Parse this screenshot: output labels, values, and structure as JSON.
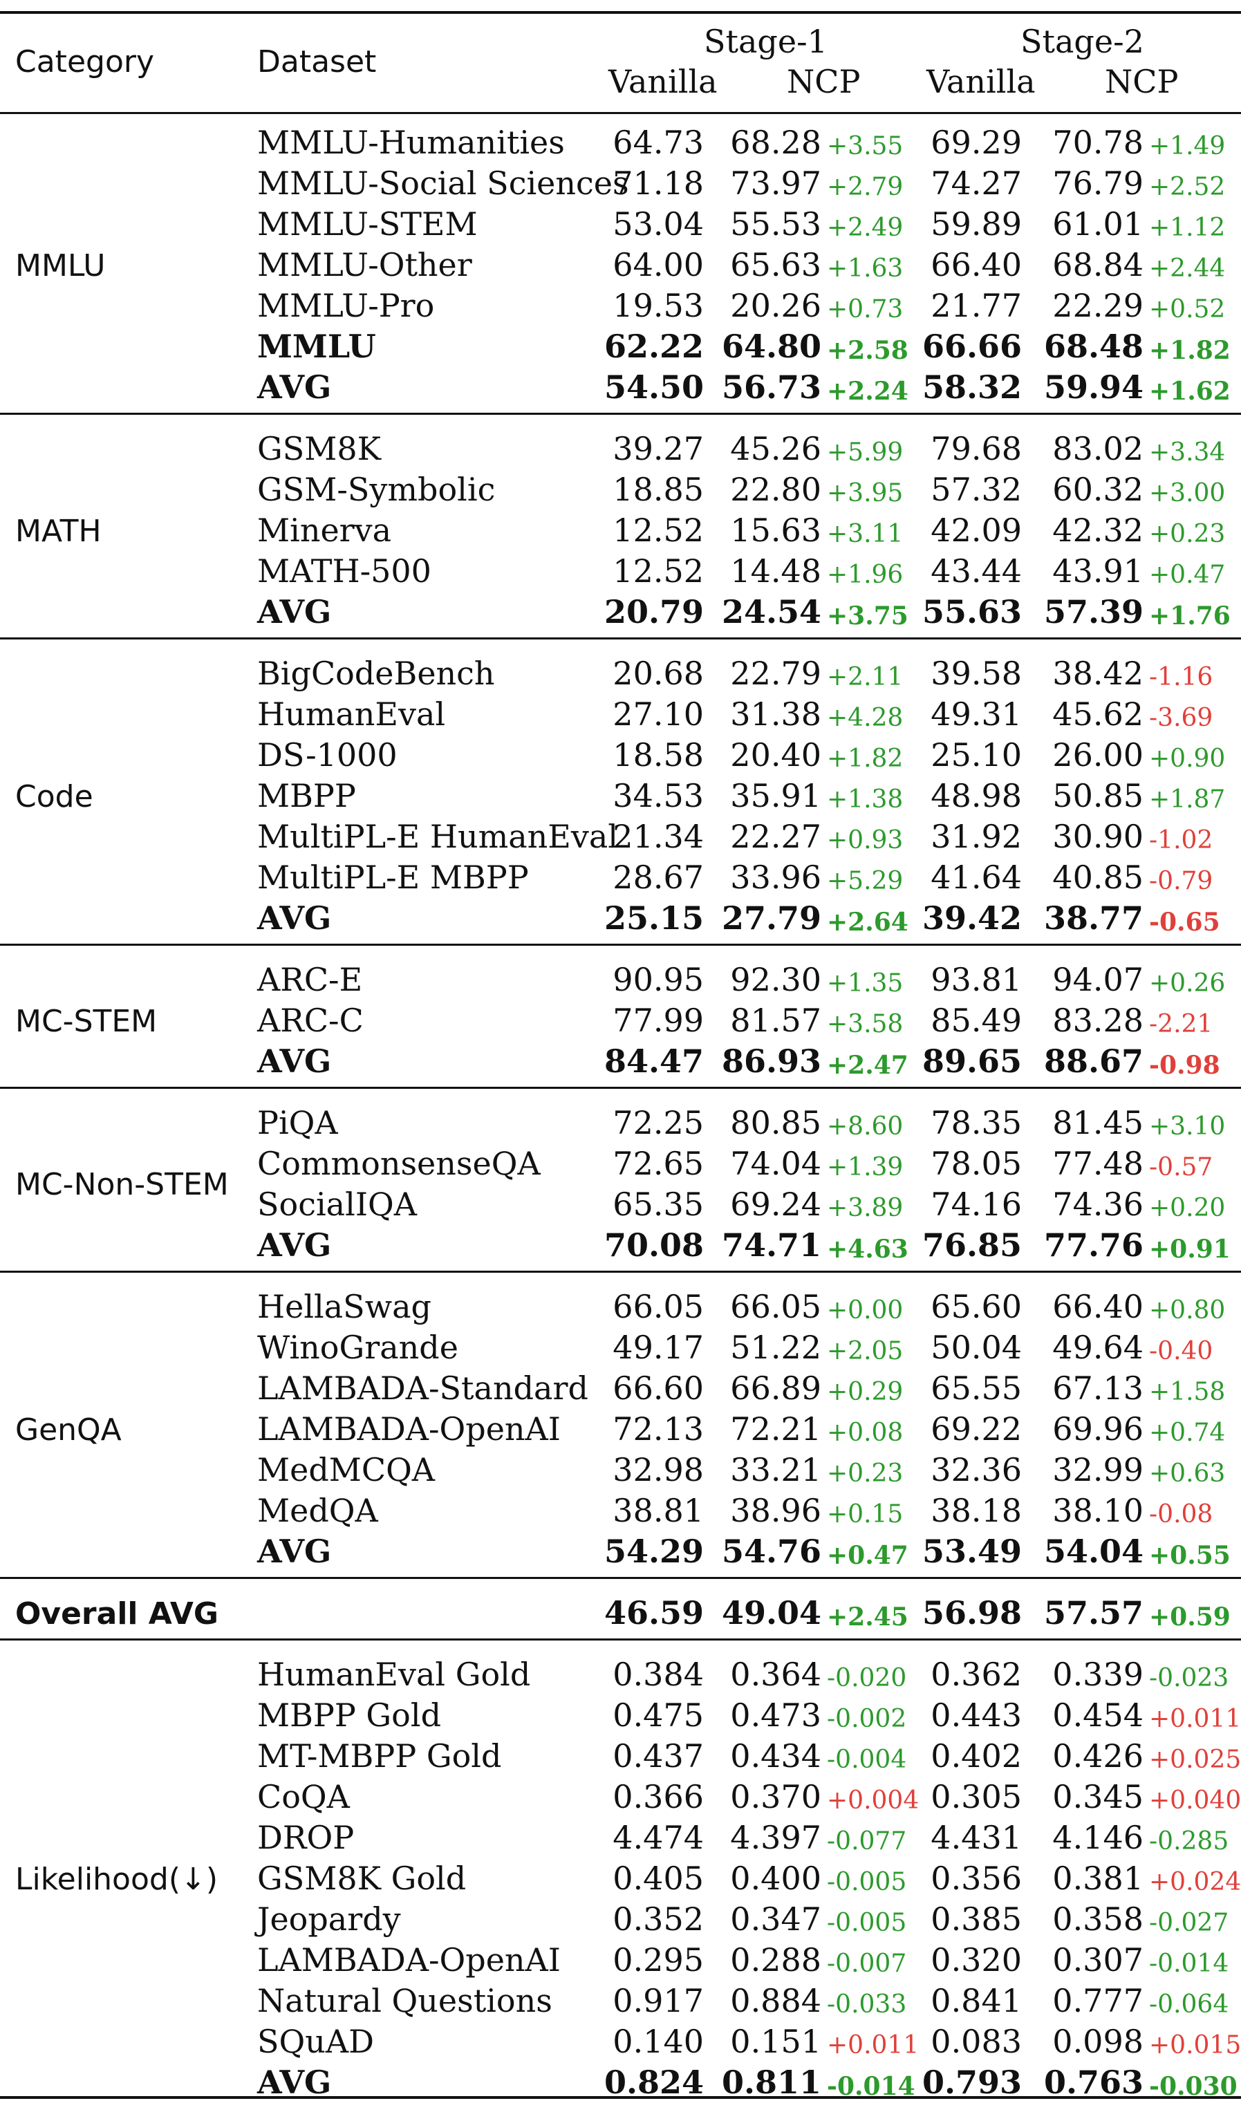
{
  "header": {
    "category": "Category",
    "dataset": "Dataset",
    "stage1": "Stage-1",
    "stage2": "Stage-2",
    "vanilla": "Vanilla",
    "ncp": "NCP"
  },
  "groups": [
    {
      "category": "MMLU",
      "rows": [
        {
          "dataset": "MMLU-Humanities",
          "s1_vanilla": "64.73",
          "s1_ncp": "68.28",
          "s1_delta": "+3.55",
          "s2_vanilla": "69.29",
          "s2_ncp": "70.78",
          "s2_delta": "+1.49"
        },
        {
          "dataset": "MMLU-Social Sciences",
          "s1_vanilla": "71.18",
          "s1_ncp": "73.97",
          "s1_delta": "+2.79",
          "s2_vanilla": "74.27",
          "s2_ncp": "76.79",
          "s2_delta": "+2.52"
        },
        {
          "dataset": "MMLU-STEM",
          "s1_vanilla": "53.04",
          "s1_ncp": "55.53",
          "s1_delta": "+2.49",
          "s2_vanilla": "59.89",
          "s2_ncp": "61.01",
          "s2_delta": "+1.12"
        },
        {
          "dataset": "MMLU-Other",
          "s1_vanilla": "64.00",
          "s1_ncp": "65.63",
          "s1_delta": "+1.63",
          "s2_vanilla": "66.40",
          "s2_ncp": "68.84",
          "s2_delta": "+2.44"
        },
        {
          "dataset": "MMLU-Pro",
          "s1_vanilla": "19.53",
          "s1_ncp": "20.26",
          "s1_delta": "+0.73",
          "s2_vanilla": "21.77",
          "s2_ncp": "22.29",
          "s2_delta": "+0.52"
        },
        {
          "dataset": "MMLU",
          "s1_vanilla": "62.22",
          "s1_ncp": "64.80",
          "s1_delta": "+2.58",
          "s2_vanilla": "66.66",
          "s2_ncp": "68.48",
          "s2_delta": "+1.82",
          "bold": true
        },
        {
          "dataset": "AVG",
          "s1_vanilla": "54.50",
          "s1_ncp": "56.73",
          "s1_delta": "+2.24",
          "s2_vanilla": "58.32",
          "s2_ncp": "59.94",
          "s2_delta": "+1.62",
          "bold": true
        }
      ]
    },
    {
      "category": "MATH",
      "rows": [
        {
          "dataset": "GSM8K",
          "s1_vanilla": "39.27",
          "s1_ncp": "45.26",
          "s1_delta": "+5.99",
          "s2_vanilla": "79.68",
          "s2_ncp": "83.02",
          "s2_delta": "+3.34"
        },
        {
          "dataset": "GSM-Symbolic",
          "s1_vanilla": "18.85",
          "s1_ncp": "22.80",
          "s1_delta": "+3.95",
          "s2_vanilla": "57.32",
          "s2_ncp": "60.32",
          "s2_delta": "+3.00"
        },
        {
          "dataset": "Minerva",
          "s1_vanilla": "12.52",
          "s1_ncp": "15.63",
          "s1_delta": "+3.11",
          "s2_vanilla": "42.09",
          "s2_ncp": "42.32",
          "s2_delta": "+0.23"
        },
        {
          "dataset": "MATH-500",
          "s1_vanilla": "12.52",
          "s1_ncp": "14.48",
          "s1_delta": "+1.96",
          "s2_vanilla": "43.44",
          "s2_ncp": "43.91",
          "s2_delta": "+0.47"
        },
        {
          "dataset": "AVG",
          "s1_vanilla": "20.79",
          "s1_ncp": "24.54",
          "s1_delta": "+3.75",
          "s2_vanilla": "55.63",
          "s2_ncp": "57.39",
          "s2_delta": "+1.76",
          "bold": true
        }
      ]
    },
    {
      "category": "Code",
      "rows": [
        {
          "dataset": "BigCodeBench",
          "s1_vanilla": "20.68",
          "s1_ncp": "22.79",
          "s1_delta": "+2.11",
          "s2_vanilla": "39.58",
          "s2_ncp": "38.42",
          "s2_delta": "-1.16"
        },
        {
          "dataset": "HumanEval",
          "s1_vanilla": "27.10",
          "s1_ncp": "31.38",
          "s1_delta": "+4.28",
          "s2_vanilla": "49.31",
          "s2_ncp": "45.62",
          "s2_delta": "-3.69"
        },
        {
          "dataset": "DS-1000",
          "s1_vanilla": "18.58",
          "s1_ncp": "20.40",
          "s1_delta": "+1.82",
          "s2_vanilla": "25.10",
          "s2_ncp": "26.00",
          "s2_delta": "+0.90"
        },
        {
          "dataset": "MBPP",
          "s1_vanilla": "34.53",
          "s1_ncp": "35.91",
          "s1_delta": "+1.38",
          "s2_vanilla": "48.98",
          "s2_ncp": "50.85",
          "s2_delta": "+1.87"
        },
        {
          "dataset": "MultiPL-E HumanEval",
          "s1_vanilla": "21.34",
          "s1_ncp": "22.27",
          "s1_delta": "+0.93",
          "s2_vanilla": "31.92",
          "s2_ncp": "30.90",
          "s2_delta": "-1.02"
        },
        {
          "dataset": "MultiPL-E MBPP",
          "s1_vanilla": "28.67",
          "s1_ncp": "33.96",
          "s1_delta": "+5.29",
          "s2_vanilla": "41.64",
          "s2_ncp": "40.85",
          "s2_delta": "-0.79"
        },
        {
          "dataset": "AVG",
          "s1_vanilla": "25.15",
          "s1_ncp": "27.79",
          "s1_delta": "+2.64",
          "s2_vanilla": "39.42",
          "s2_ncp": "38.77",
          "s2_delta": "-0.65",
          "bold": true
        }
      ]
    },
    {
      "category": "MC-STEM",
      "rows": [
        {
          "dataset": "ARC-E",
          "s1_vanilla": "90.95",
          "s1_ncp": "92.30",
          "s1_delta": "+1.35",
          "s2_vanilla": "93.81",
          "s2_ncp": "94.07",
          "s2_delta": "+0.26"
        },
        {
          "dataset": "ARC-C",
          "s1_vanilla": "77.99",
          "s1_ncp": "81.57",
          "s1_delta": "+3.58",
          "s2_vanilla": "85.49",
          "s2_ncp": "83.28",
          "s2_delta": "-2.21"
        },
        {
          "dataset": "AVG",
          "s1_vanilla": "84.47",
          "s1_ncp": "86.93",
          "s1_delta": "+2.47",
          "s2_vanilla": "89.65",
          "s2_ncp": "88.67",
          "s2_delta": "-0.98",
          "bold": true
        }
      ]
    },
    {
      "category": "MC-Non-STEM",
      "rows": [
        {
          "dataset": "PiQA",
          "s1_vanilla": "72.25",
          "s1_ncp": "80.85",
          "s1_delta": "+8.60",
          "s2_vanilla": "78.35",
          "s2_ncp": "81.45",
          "s2_delta": "+3.10"
        },
        {
          "dataset": "CommonsenseQA",
          "s1_vanilla": "72.65",
          "s1_ncp": "74.04",
          "s1_delta": "+1.39",
          "s2_vanilla": "78.05",
          "s2_ncp": "77.48",
          "s2_delta": "-0.57"
        },
        {
          "dataset": "SocialIQA",
          "s1_vanilla": "65.35",
          "s1_ncp": "69.24",
          "s1_delta": "+3.89",
          "s2_vanilla": "74.16",
          "s2_ncp": "74.36",
          "s2_delta": "+0.20"
        },
        {
          "dataset": "AVG",
          "s1_vanilla": "70.08",
          "s1_ncp": "74.71",
          "s1_delta": "+4.63",
          "s2_vanilla": "76.85",
          "s2_ncp": "77.76",
          "s2_delta": "+0.91",
          "bold": true
        }
      ]
    },
    {
      "category": "GenQA",
      "rows": [
        {
          "dataset": "HellaSwag",
          "s1_vanilla": "66.05",
          "s1_ncp": "66.05",
          "s1_delta": "+0.00",
          "s2_vanilla": "65.60",
          "s2_ncp": "66.40",
          "s2_delta": "+0.80"
        },
        {
          "dataset": "WinoGrande",
          "s1_vanilla": "49.17",
          "s1_ncp": "51.22",
          "s1_delta": "+2.05",
          "s2_vanilla": "50.04",
          "s2_ncp": "49.64",
          "s2_delta": "-0.40"
        },
        {
          "dataset": "LAMBADA-Standard",
          "s1_vanilla": "66.60",
          "s1_ncp": "66.89",
          "s1_delta": "+0.29",
          "s2_vanilla": "65.55",
          "s2_ncp": "67.13",
          "s2_delta": "+1.58"
        },
        {
          "dataset": "LAMBADA-OpenAI",
          "s1_vanilla": "72.13",
          "s1_ncp": "72.21",
          "s1_delta": "+0.08",
          "s2_vanilla": "69.22",
          "s2_ncp": "69.96",
          "s2_delta": "+0.74"
        },
        {
          "dataset": "MedMCQA",
          "s1_vanilla": "32.98",
          "s1_ncp": "33.21",
          "s1_delta": "+0.23",
          "s2_vanilla": "32.36",
          "s2_ncp": "32.99",
          "s2_delta": "+0.63"
        },
        {
          "dataset": "MedQA",
          "s1_vanilla": "38.81",
          "s1_ncp": "38.96",
          "s1_delta": "+0.15",
          "s2_vanilla": "38.18",
          "s2_ncp": "38.10",
          "s2_delta": "-0.08"
        },
        {
          "dataset": "AVG",
          "s1_vanilla": "54.29",
          "s1_ncp": "54.76",
          "s1_delta": "+0.47",
          "s2_vanilla": "53.49",
          "s2_ncp": "54.04",
          "s2_delta": "+0.55",
          "bold": true
        }
      ]
    },
    {
      "category": "Overall AVG",
      "category_bold": true,
      "rows": [
        {
          "dataset": "",
          "s1_vanilla": "46.59",
          "s1_ncp": "49.04",
          "s1_delta": "+2.45",
          "s2_vanilla": "56.98",
          "s2_ncp": "57.57",
          "s2_delta": "+0.59",
          "bold": true
        }
      ]
    },
    {
      "category": "Likelihood(↓)",
      "inverted": true,
      "rows": [
        {
          "dataset": "HumanEval Gold",
          "s1_vanilla": "0.384",
          "s1_ncp": "0.364",
          "s1_delta": "-0.020",
          "s2_vanilla": "0.362",
          "s2_ncp": "0.339",
          "s2_delta": "-0.023"
        },
        {
          "dataset": "MBPP Gold",
          "s1_vanilla": "0.475",
          "s1_ncp": "0.473",
          "s1_delta": "-0.002",
          "s2_vanilla": "0.443",
          "s2_ncp": "0.454",
          "s2_delta": "+0.011"
        },
        {
          "dataset": "MT-MBPP Gold",
          "s1_vanilla": "0.437",
          "s1_ncp": "0.434",
          "s1_delta": "-0.004",
          "s2_vanilla": "0.402",
          "s2_ncp": "0.426",
          "s2_delta": "+0.025"
        },
        {
          "dataset": "CoQA",
          "s1_vanilla": "0.366",
          "s1_ncp": "0.370",
          "s1_delta": "+0.004",
          "s2_vanilla": "0.305",
          "s2_ncp": "0.345",
          "s2_delta": "+0.040"
        },
        {
          "dataset": "DROP",
          "s1_vanilla": "4.474",
          "s1_ncp": "4.397",
          "s1_delta": "-0.077",
          "s2_vanilla": "4.431",
          "s2_ncp": "4.146",
          "s2_delta": "-0.285"
        },
        {
          "dataset": "GSM8K Gold",
          "s1_vanilla": "0.405",
          "s1_ncp": "0.400",
          "s1_delta": "-0.005",
          "s2_vanilla": "0.356",
          "s2_ncp": "0.381",
          "s2_delta": "+0.024"
        },
        {
          "dataset": "Jeopardy",
          "s1_vanilla": "0.352",
          "s1_ncp": "0.347",
          "s1_delta": "-0.005",
          "s2_vanilla": "0.385",
          "s2_ncp": "0.358",
          "s2_delta": "-0.027"
        },
        {
          "dataset": "LAMBADA-OpenAI",
          "s1_vanilla": "0.295",
          "s1_ncp": "0.288",
          "s1_delta": "-0.007",
          "s2_vanilla": "0.320",
          "s2_ncp": "0.307",
          "s2_delta": "-0.014"
        },
        {
          "dataset": "Natural Questions",
          "s1_vanilla": "0.917",
          "s1_ncp": "0.884",
          "s1_delta": "-0.033",
          "s2_vanilla": "0.841",
          "s2_ncp": "0.777",
          "s2_delta": "-0.064"
        },
        {
          "dataset": "SQuAD",
          "s1_vanilla": "0.140",
          "s1_ncp": "0.151",
          "s1_delta": "+0.011",
          "s2_vanilla": "0.083",
          "s2_ncp": "0.098",
          "s2_delta": "+0.015"
        },
        {
          "dataset": "AVG",
          "s1_vanilla": "0.824",
          "s1_ncp": "0.811",
          "s1_delta": "-0.014",
          "s2_vanilla": "0.793",
          "s2_ncp": "0.763",
          "s2_delta": "-0.030",
          "bold": true
        }
      ]
    }
  ],
  "colors": {
    "improve": "#2c9a2c",
    "regress": "#e0403a",
    "text": "#111111",
    "rule": "#111111"
  }
}
